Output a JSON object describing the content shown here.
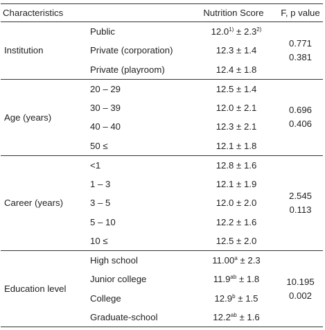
{
  "header": {
    "characteristics": "Characteristics",
    "nutrition_score": "Nutrition Score",
    "f_p_value": "F, p value"
  },
  "groups": [
    {
      "name": "Institution",
      "rows": [
        {
          "label": "Public",
          "mean": "12.0",
          "mean_sup": "1)",
          "sd": "2.3",
          "sd_sup": "2)"
        },
        {
          "label": "Private (corporation)",
          "mean": "12.3",
          "mean_sup": "",
          "sd": "1.4",
          "sd_sup": ""
        },
        {
          "label": "Private (playroom)",
          "mean": "12.4",
          "mean_sup": "",
          "sd": "1.8",
          "sd_sup": ""
        }
      ],
      "f": "0.771",
      "p": "0.381"
    },
    {
      "name": "Age (years)",
      "rows": [
        {
          "label": "20 – 29",
          "mean": "12.5",
          "mean_sup": "",
          "sd": "1.4",
          "sd_sup": ""
        },
        {
          "label": "30 – 39",
          "mean": "12.0",
          "mean_sup": "",
          "sd": "2.1",
          "sd_sup": ""
        },
        {
          "label": "40 – 40",
          "mean": "12.3",
          "mean_sup": "",
          "sd": "2.1",
          "sd_sup": ""
        },
        {
          "label": "50 ≤",
          "mean": "12.1",
          "mean_sup": "",
          "sd": "1.8",
          "sd_sup": ""
        }
      ],
      "f": "0.696",
      "p": "0.406"
    },
    {
      "name": "Career (years)",
      "rows": [
        {
          "label": "<1",
          "mean": "12.8",
          "mean_sup": "",
          "sd": "1.6",
          "sd_sup": ""
        },
        {
          "label": "1 – 3",
          "mean": "12.1",
          "mean_sup": "",
          "sd": "1.9",
          "sd_sup": ""
        },
        {
          "label": "3 – 5",
          "mean": "12.0",
          "mean_sup": "",
          "sd": "2.0",
          "sd_sup": ""
        },
        {
          "label": "5 – 10",
          "mean": "12.2",
          "mean_sup": "",
          "sd": "1.6",
          "sd_sup": ""
        },
        {
          "label": "10 ≤",
          "mean": "12.5",
          "mean_sup": "",
          "sd": "2.0",
          "sd_sup": ""
        }
      ],
      "f": "2.545",
      "p": "0.113"
    },
    {
      "name": "Education level",
      "rows": [
        {
          "label": "High school",
          "mean": "11.00",
          "mean_sup": "a",
          "sd": "2.3",
          "sd_sup": ""
        },
        {
          "label": "Junior college",
          "mean": "11.9",
          "mean_sup": "ab",
          "sd": "1.8",
          "sd_sup": ""
        },
        {
          "label": "College",
          "mean": "12.9",
          "mean_sup": "b",
          "sd": "1.5",
          "sd_sup": ""
        },
        {
          "label": "Graduate-school",
          "mean": "12.2",
          "mean_sup": "ab",
          "sd": "1.6",
          "sd_sup": ""
        }
      ],
      "f": "10.195",
      "p": "0.002"
    }
  ],
  "pm_symbol": "±"
}
